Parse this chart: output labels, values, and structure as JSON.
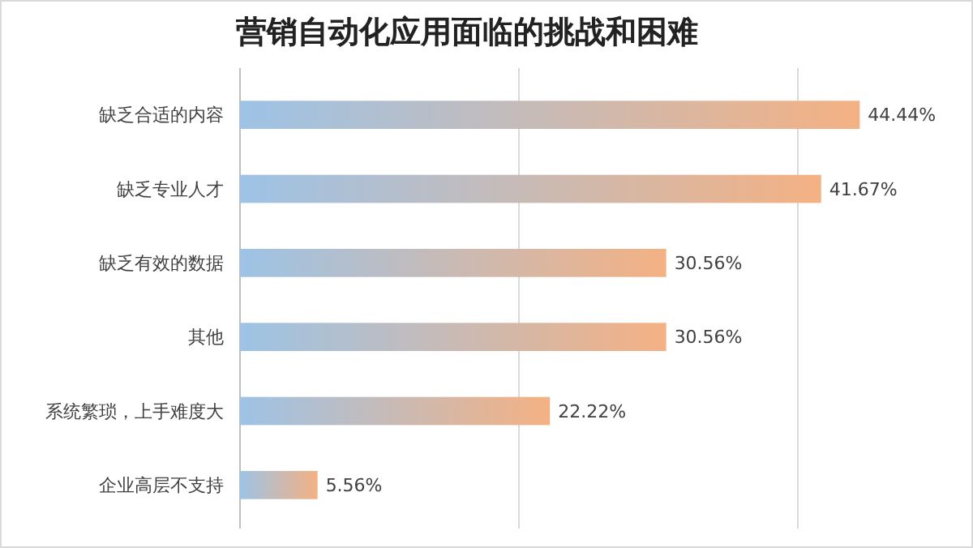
{
  "chart_data": {
    "type": "bar",
    "orientation": "horizontal",
    "title": "营销自动化应用面临的挑战和困难",
    "categories": [
      "缺乏合适的内容",
      "缺乏专业人才",
      "缺乏有效的数据",
      "其他",
      "系统繁琐，上手难度大",
      "企业高层不支持"
    ],
    "values": [
      44.44,
      41.67,
      30.56,
      30.56,
      22.22,
      5.56
    ],
    "value_labels": [
      "44.44%",
      "41.67%",
      "30.56%",
      "30.56%",
      "22.22%",
      "5.56%"
    ],
    "color": "#f4b183",
    "ref_lines": [
      {
        "axis": "x",
        "value": 20,
        "color": "#d9d9d9"
      },
      {
        "axis": "x",
        "value": 40,
        "color": "#d9d9d9"
      }
    ]
  }
}
